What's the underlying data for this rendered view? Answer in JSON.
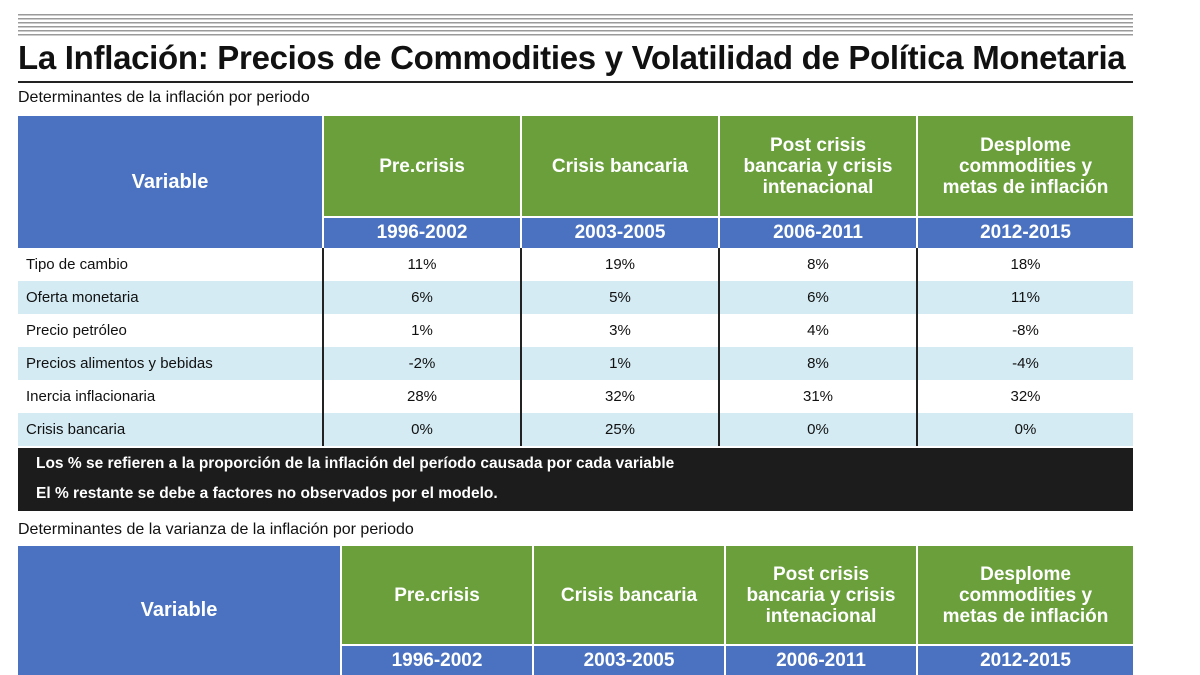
{
  "title": "La Inflación: Precios de Commodities y Volatilidad de Política Monetaria",
  "table1": {
    "subtitle": "Determinantes de la inflación por periodo",
    "variable_header": "Variable",
    "columns": [
      {
        "name": "Pre.crisis",
        "period": "1996-2002"
      },
      {
        "name": "Crisis bancaria",
        "period": "2003-2005"
      },
      {
        "name": "Post crisis bancaria y crisis intenacional",
        "period": "2006-2011"
      },
      {
        "name": "Desplome commodities y metas de inflación",
        "period": "2012-2015"
      }
    ],
    "rows": [
      {
        "label": "Tipo de cambio",
        "values": [
          "11%",
          "19%",
          "8%",
          "18%"
        ]
      },
      {
        "label": "Oferta monetaria",
        "values": [
          "6%",
          "5%",
          "6%",
          "11%"
        ]
      },
      {
        "label": "Precio petróleo",
        "values": [
          "1%",
          "3%",
          "4%",
          "-8%"
        ]
      },
      {
        "label": "Precios alimentos y bebidas",
        "values": [
          "-2%",
          "1%",
          "8%",
          "-4%"
        ]
      },
      {
        "label": "Inercia inflacionaria",
        "values": [
          "28%",
          "32%",
          "31%",
          "32%"
        ]
      },
      {
        "label": "Crisis bancaria",
        "values": [
          "0%",
          "25%",
          "0%",
          "0%"
        ]
      }
    ],
    "notes": [
      "Los % se refieren a la proporción de la inflación del período causada por cada variable",
      "El % restante se debe a factores no observados por el modelo."
    ]
  },
  "table2": {
    "subtitle": "Determinantes de la varianza de la inflación por periodo",
    "variable_header": "Variable",
    "columns": [
      {
        "name": "Pre.crisis",
        "period": "1996-2002"
      },
      {
        "name": "Crisis bancaria",
        "period": "2003-2005"
      },
      {
        "name": "Post crisis bancaria y crisis intenacional",
        "period": "2006-2011"
      },
      {
        "name": "Desplome commodities y metas de inflación",
        "period": "2012-2015"
      }
    ]
  }
}
